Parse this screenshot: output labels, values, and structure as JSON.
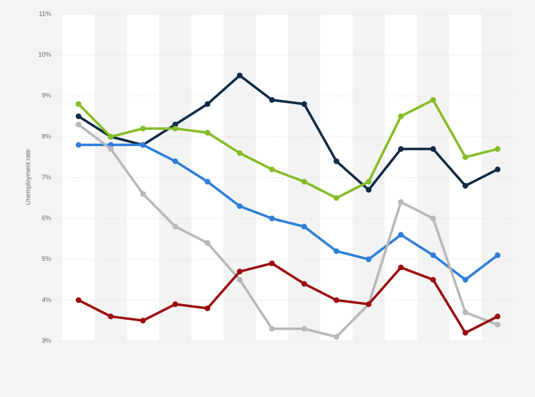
{
  "chart_data": {
    "type": "line",
    "y_label": "Unemployment rate",
    "categories": [
      null,
      null,
      null,
      null,
      null,
      null,
      null,
      null,
      null,
      null,
      null,
      null,
      null,
      null
    ],
    "series": [
      {
        "color": "#0f2a44",
        "values": [
          8.5,
          8.0,
          7.8,
          8.3,
          8.8,
          9.5,
          8.9,
          8.8,
          7.4,
          6.7,
          7.7,
          7.7,
          6.8,
          7.2
        ]
      },
      {
        "color": "#86bc25",
        "values": [
          8.8,
          8.0,
          8.2,
          8.2,
          8.1,
          7.6,
          7.2,
          6.9,
          6.5,
          6.9,
          8.5,
          8.9,
          7.5,
          7.7
        ]
      },
      {
        "color": "#2f7ed8",
        "values": [
          7.8,
          7.8,
          7.8,
          7.4,
          6.9,
          6.3,
          6.0,
          5.8,
          5.2,
          5.0,
          5.6,
          5.1,
          4.5,
          5.1
        ]
      },
      {
        "color": "#b8b8b8",
        "values": [
          8.3,
          7.7,
          6.6,
          5.8,
          5.4,
          4.5,
          3.3,
          3.3,
          3.1,
          3.9,
          6.4,
          6.0,
          3.7,
          3.4
        ]
      },
      {
        "color": "#9b0d0d",
        "values": [
          4.0,
          3.6,
          3.5,
          3.9,
          3.8,
          4.7,
          4.9,
          4.4,
          4.0,
          3.9,
          4.8,
          4.5,
          3.2,
          3.6
        ]
      }
    ],
    "ylim": [
      3,
      11
    ],
    "yticks": [
      {
        "value": 3,
        "label": "3%"
      },
      {
        "value": 4,
        "label": "4%"
      },
      {
        "value": 5,
        "label": "5%"
      },
      {
        "value": 6,
        "label": "6%"
      },
      {
        "value": 7,
        "label": "7%"
      },
      {
        "value": 8,
        "label": "8%"
      },
      {
        "value": 9,
        "label": "9%"
      },
      {
        "value": 10,
        "label": "10%"
      },
      {
        "value": 11,
        "label": "11%"
      }
    ],
    "grid": true
  }
}
